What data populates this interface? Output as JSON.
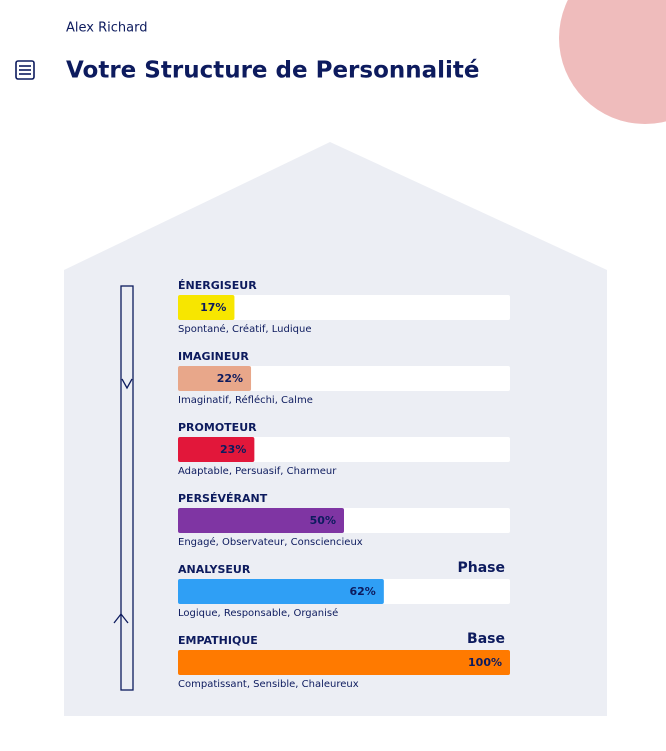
{
  "header": {
    "name": "Alex Richard",
    "title": "Votre Structure de Personnalité"
  },
  "chart_data": {
    "type": "bar",
    "orientation": "horizontal",
    "categories": [
      "ÉNERGISEUR",
      "IMAGINEUR",
      "PROMOTEUR",
      "PERSÉVÉRANT",
      "ANALYSEUR",
      "EMPATHIQUE"
    ],
    "values": [
      17,
      22,
      23,
      50,
      62,
      100
    ],
    "value_labels": [
      "17%",
      "22%",
      "23%",
      "50%",
      "62%",
      "100%"
    ],
    "colors": [
      "#f7e600",
      "#e8a78a",
      "#e2173a",
      "#7f35a3",
      "#2f9ff5",
      "#ff7a00"
    ],
    "descriptions": [
      "Spontané, Créatif, Ludique",
      "Imaginatif, Réfléchi, Calme",
      "Adaptable, Persuasif, Charmeur",
      "Engagé, Observateur, Consciencieux",
      "Logique, Responsable, Organisé",
      "Compatissant, Sensible, Chaleureux"
    ],
    "annotations": [
      null,
      null,
      null,
      null,
      "Phase",
      "Base"
    ],
    "xlim": [
      0,
      100
    ]
  }
}
